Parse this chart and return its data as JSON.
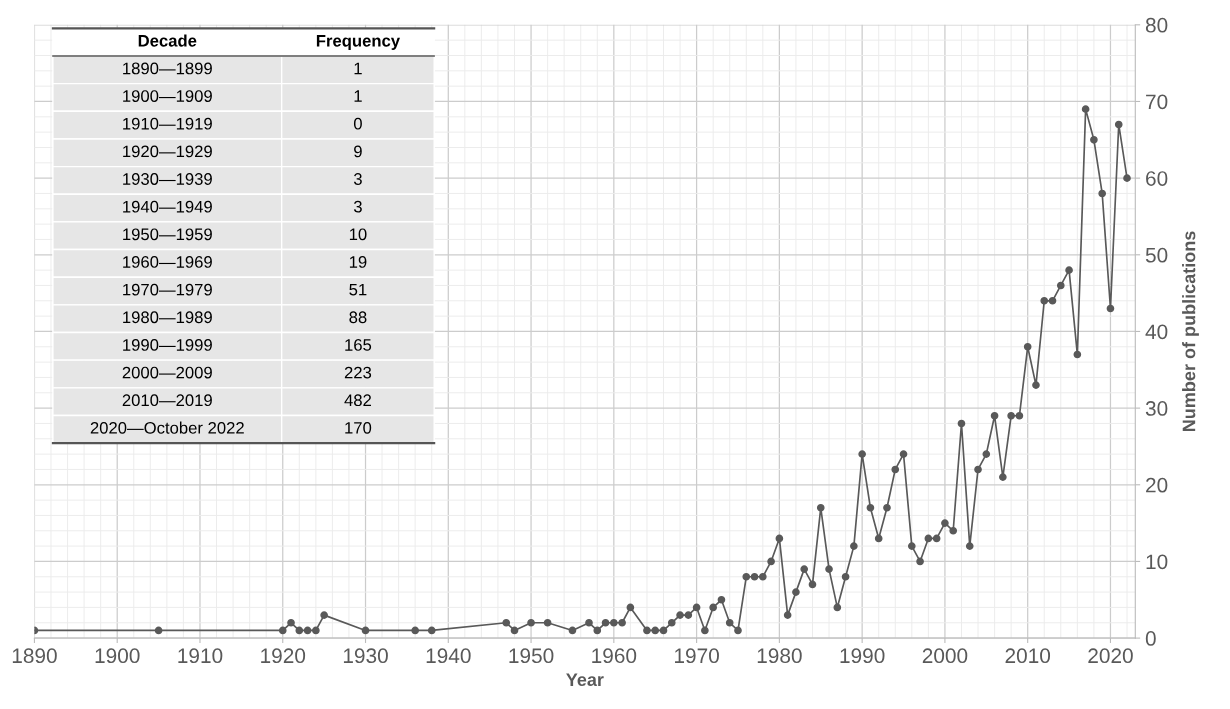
{
  "chart_data": [
    {
      "type": "line",
      "xlabel": "Year",
      "ylabel": "Number of publications",
      "xlim": [
        1890,
        2023
      ],
      "xticks": [
        1890,
        1900,
        1910,
        1920,
        1930,
        1940,
        1950,
        1960,
        1970,
        1980,
        1990,
        2000,
        2010,
        2020
      ],
      "ylim": [
        0,
        80
      ],
      "yticks": [
        0,
        10,
        20,
        30,
        40,
        50,
        60,
        70,
        80
      ],
      "grid": true,
      "marker": "circle",
      "line_style": "solid",
      "x": [
        1890,
        1905,
        1920,
        1921,
        1922,
        1923,
        1924,
        1925,
        1930,
        1936,
        1938,
        1947,
        1948,
        1950,
        1952,
        1955,
        1957,
        1958,
        1959,
        1960,
        1961,
        1962,
        1964,
        1965,
        1966,
        1967,
        1968,
        1969,
        1970,
        1971,
        1972,
        1973,
        1974,
        1975,
        1976,
        1977,
        1978,
        1979,
        1980,
        1981,
        1982,
        1983,
        1984,
        1985,
        1986,
        1987,
        1988,
        1989,
        1990,
        1991,
        1992,
        1993,
        1994,
        1995,
        1996,
        1997,
        1998,
        1999,
        2000,
        2001,
        2002,
        2003,
        2004,
        2005,
        2006,
        2007,
        2008,
        2009,
        2010,
        2011,
        2012,
        2013,
        2014,
        2015,
        2016,
        2017,
        2018,
        2019,
        2020,
        2021,
        2022
      ],
      "series": [
        {
          "color": "#595959",
          "values": [
            1,
            1,
            1,
            2,
            1,
            1,
            1,
            3,
            1,
            1,
            1,
            2,
            1,
            2,
            2,
            1,
            2,
            1,
            2,
            2,
            2,
            4,
            1,
            1,
            1,
            2,
            3,
            3,
            4,
            1,
            4,
            5,
            2,
            1,
            8,
            8,
            8,
            10,
            13,
            3,
            6,
            9,
            7,
            17,
            9,
            4,
            8,
            12,
            24,
            17,
            13,
            17,
            22,
            24,
            12,
            10,
            13,
            13,
            15,
            14,
            28,
            12,
            22,
            24,
            29,
            21,
            29,
            29,
            38,
            33,
            44,
            44,
            46,
            48,
            37,
            69,
            65,
            58,
            43,
            67,
            60
          ]
        }
      ]
    },
    {
      "type": "other",
      "xlabel": "Decade",
      "ylabel": "Frequency",
      "categories": [
        "1890—1899",
        "1900—1909",
        "1910—1919",
        "1920—1929",
        "1930—1939",
        "1940—1949",
        "1950—1959",
        "1960—1969",
        "1970—1979",
        "1980—1989",
        "1990—1999",
        "2000—2009",
        "2010—2019",
        "2020—October 2022"
      ],
      "values": [
        1,
        1,
        0,
        9,
        3,
        3,
        10,
        19,
        51,
        88,
        165,
        223,
        482,
        170
      ],
      "data_labels": true
    }
  ]
}
